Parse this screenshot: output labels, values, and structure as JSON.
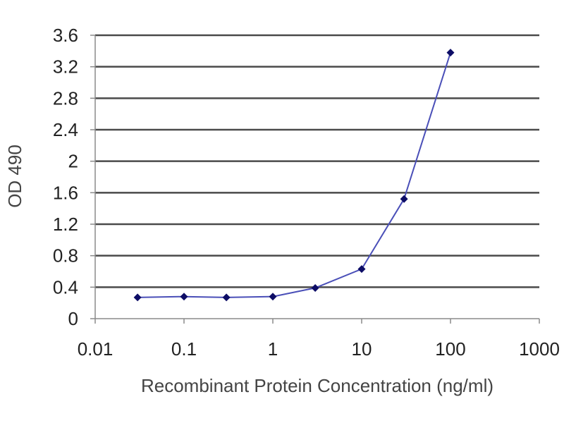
{
  "chart_data": {
    "type": "line",
    "title": "",
    "xlabel": "Recombinant Protein Concentration (ng/ml)",
    "ylabel": "OD 490",
    "x_scale": "log",
    "xlim": [
      0.01,
      1000
    ],
    "ylim": [
      0,
      3.6
    ],
    "x_ticks": [
      {
        "value": 0.01,
        "label": "0.01"
      },
      {
        "value": 0.1,
        "label": "0.1"
      },
      {
        "value": 1,
        "label": "1"
      },
      {
        "value": 10,
        "label": "10"
      },
      {
        "value": 100,
        "label": "100"
      },
      {
        "value": 1000,
        "label": "1000"
      }
    ],
    "y_ticks": [
      {
        "value": 0,
        "label": "0"
      },
      {
        "value": 0.4,
        "label": "0.4"
      },
      {
        "value": 0.8,
        "label": "0.8"
      },
      {
        "value": 1.2,
        "label": "1.2"
      },
      {
        "value": 1.6,
        "label": "1.6"
      },
      {
        "value": 2.0,
        "label": "2"
      },
      {
        "value": 2.4,
        "label": "2.4"
      },
      {
        "value": 2.8,
        "label": "2.8"
      },
      {
        "value": 3.2,
        "label": "3.2"
      },
      {
        "value": 3.6,
        "label": "3.6"
      }
    ],
    "grid": "horizontal",
    "legend": "none",
    "series": [
      {
        "x": [
          0.03,
          0.1,
          0.3,
          1,
          3,
          10,
          30,
          100
        ],
        "y": [
          0.27,
          0.28,
          0.27,
          0.28,
          0.39,
          0.63,
          1.52,
          3.38
        ]
      }
    ],
    "colors": {
      "line": "#4a4fb8",
      "marker": "#0d0d66",
      "grid": "#4a4a4a",
      "axis": "#8a8a8a",
      "plot_background": "#ffffff"
    }
  }
}
